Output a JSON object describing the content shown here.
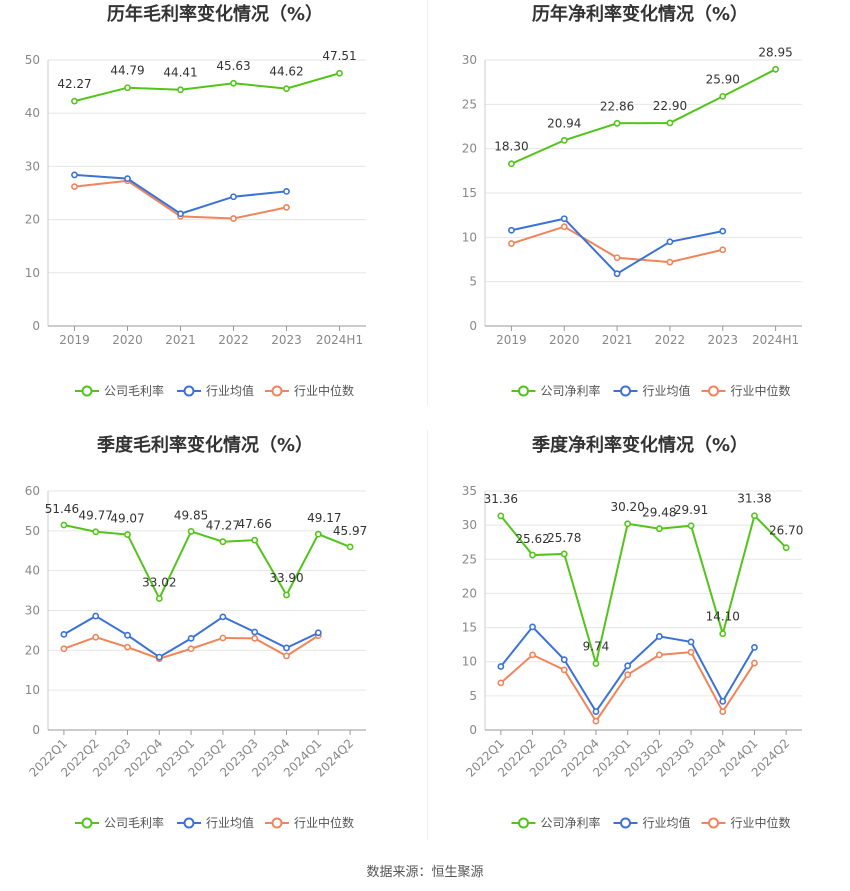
{
  "source_note": "数据来源：恒生聚源",
  "colors": {
    "company": "#52c41a",
    "industry_avg": "#3a72d8",
    "industry_median": "#f0845a"
  },
  "chart_data": [
    {
      "type": "line",
      "title": "历年毛利率变化情况（%）",
      "categories": [
        "2019",
        "2020",
        "2021",
        "2022",
        "2023",
        "2024H1"
      ],
      "ylim": [
        0,
        50
      ],
      "yticks": [
        0,
        10,
        20,
        30,
        40,
        50
      ],
      "grid": true,
      "legend_position": "bottom",
      "series": [
        {
          "name": "公司毛利率",
          "values": [
            42.27,
            44.79,
            44.41,
            45.63,
            44.62,
            47.51
          ],
          "labels": [
            "42.27",
            "44.79",
            "44.41",
            "45.63",
            "44.62",
            "47.51"
          ]
        },
        {
          "name": "行业均值",
          "values": [
            28.4,
            27.7,
            21.1,
            24.3,
            25.3,
            null
          ]
        },
        {
          "name": "行业中位数",
          "values": [
            26.2,
            27.3,
            20.6,
            20.2,
            22.3,
            null
          ]
        }
      ]
    },
    {
      "type": "line",
      "title": "历年净利率变化情况（%）",
      "categories": [
        "2019",
        "2020",
        "2021",
        "2022",
        "2023",
        "2024H1"
      ],
      "ylim": [
        0,
        30
      ],
      "yticks": [
        0,
        5,
        10,
        15,
        20,
        25,
        30
      ],
      "grid": true,
      "legend_position": "bottom",
      "series": [
        {
          "name": "公司净利率",
          "values": [
            18.3,
            20.94,
            22.86,
            22.9,
            25.9,
            28.95
          ],
          "labels": [
            "18.30",
            "20.94",
            "22.86",
            "22.90",
            "25.90",
            "28.95"
          ]
        },
        {
          "name": "行业均值",
          "values": [
            10.8,
            12.1,
            5.9,
            9.5,
            10.7,
            null
          ]
        },
        {
          "name": "行业中位数",
          "values": [
            9.3,
            11.2,
            7.7,
            7.2,
            8.6,
            null
          ]
        }
      ]
    },
    {
      "type": "line",
      "title": "季度毛利率变化情况（%）",
      "categories": [
        "2022Q1",
        "2022Q2",
        "2022Q3",
        "2022Q4",
        "2023Q1",
        "2023Q2",
        "2023Q3",
        "2023Q4",
        "2024Q1",
        "2024Q2"
      ],
      "ylim": [
        0,
        60
      ],
      "yticks": [
        0,
        10,
        20,
        30,
        40,
        50,
        60
      ],
      "grid": true,
      "legend_position": "bottom",
      "series": [
        {
          "name": "公司毛利率",
          "values": [
            51.46,
            49.77,
            49.07,
            33.02,
            49.85,
            47.27,
            47.66,
            33.9,
            49.17,
            45.97
          ],
          "labels": [
            "51.46",
            "49.77",
            "49.07",
            "33.02",
            "49.85",
            "47.27",
            "47.66",
            "33.90",
            "49.17",
            "45.97"
          ]
        },
        {
          "name": "行业均值",
          "values": [
            24.0,
            28.6,
            23.8,
            18.3,
            23.0,
            28.4,
            24.6,
            20.6,
            24.4,
            null
          ]
        },
        {
          "name": "行业中位数",
          "values": [
            20.4,
            23.3,
            20.8,
            17.9,
            20.4,
            23.1,
            23.0,
            18.6,
            23.7,
            null
          ]
        }
      ]
    },
    {
      "type": "line",
      "title": "季度净利率变化情况（%）",
      "categories": [
        "2022Q1",
        "2022Q2",
        "2022Q3",
        "2022Q4",
        "2023Q1",
        "2023Q2",
        "2023Q3",
        "2023Q4",
        "2024Q1",
        "2024Q2"
      ],
      "ylim": [
        0,
        35
      ],
      "yticks": [
        0,
        5,
        10,
        15,
        20,
        25,
        30,
        35
      ],
      "grid": true,
      "legend_position": "bottom",
      "series": [
        {
          "name": "公司净利率",
          "values": [
            31.36,
            25.62,
            25.78,
            9.74,
            30.2,
            29.48,
            29.91,
            14.1,
            31.38,
            26.7
          ],
          "labels": [
            "31.36",
            "25.62",
            "25.78",
            "9.74",
            "30.20",
            "29.48",
            "29.91",
            "14.10",
            "31.38",
            "26.70"
          ]
        },
        {
          "name": "行业均值",
          "values": [
            9.3,
            15.1,
            10.3,
            2.7,
            9.4,
            13.7,
            12.9,
            4.2,
            12.1,
            null
          ]
        },
        {
          "name": "行业中位数",
          "values": [
            6.9,
            11.0,
            8.8,
            1.3,
            8.1,
            11.0,
            11.4,
            2.7,
            9.8,
            null
          ]
        }
      ]
    }
  ]
}
